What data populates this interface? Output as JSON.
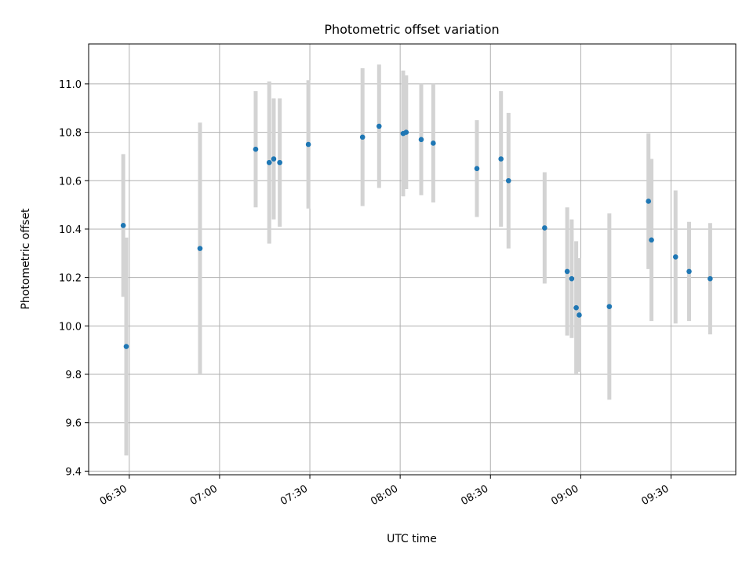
{
  "colors": {
    "point": "#1f77b4",
    "error_bar": "#d3d3d3",
    "grid": "#b0b0b0",
    "axes": "#000000",
    "background": "#ffffff"
  },
  "chart_data": {
    "type": "scatter",
    "title": "Photometric offset variation",
    "xlabel": "UTC time",
    "ylabel": "Photometric offset",
    "grid": true,
    "x_axis_type": "time",
    "xlim": [
      "06:16:30",
      "09:51:30"
    ],
    "ylim": [
      9.385,
      11.165
    ],
    "x_ticks": [
      "06:30",
      "07:00",
      "07:30",
      "08:00",
      "08:30",
      "09:00",
      "09:30"
    ],
    "y_ticks": [
      "9.4",
      "9.6",
      "9.8",
      "10.0",
      "10.2",
      "10.4",
      "10.6",
      "10.8",
      "11.0"
    ],
    "series": [
      {
        "marker": "point",
        "error_bars": "vertical",
        "points": [
          {
            "x": "06:28:00",
            "y": 10.415,
            "err": 0.295
          },
          {
            "x": "06:29:00",
            "y": 9.915,
            "err": 0.45
          },
          {
            "x": "06:53:30",
            "y": 10.32,
            "err": 0.52
          },
          {
            "x": "07:12:00",
            "y": 10.73,
            "err": 0.24
          },
          {
            "x": "07:16:30",
            "y": 10.675,
            "err": 0.335
          },
          {
            "x": "07:18:00",
            "y": 10.69,
            "err": 0.25
          },
          {
            "x": "07:20:00",
            "y": 10.675,
            "err": 0.265
          },
          {
            "x": "07:29:30",
            "y": 10.75,
            "err": 0.265
          },
          {
            "x": "07:47:30",
            "y": 10.78,
            "err": 0.285
          },
          {
            "x": "07:53:00",
            "y": 10.825,
            "err": 0.255
          },
          {
            "x": "08:01:00",
            "y": 10.795,
            "err": 0.26
          },
          {
            "x": "08:02:00",
            "y": 10.8,
            "err": 0.235
          },
          {
            "x": "08:07:00",
            "y": 10.77,
            "err": 0.23
          },
          {
            "x": "08:11:00",
            "y": 10.755,
            "err": 0.245
          },
          {
            "x": "08:25:30",
            "y": 10.65,
            "err": 0.2
          },
          {
            "x": "08:33:30",
            "y": 10.69,
            "err": 0.28
          },
          {
            "x": "08:36:00",
            "y": 10.6,
            "err": 0.28
          },
          {
            "x": "08:48:00",
            "y": 10.405,
            "err": 0.23
          },
          {
            "x": "08:55:30",
            "y": 10.225,
            "err": 0.265
          },
          {
            "x": "08:57:00",
            "y": 10.195,
            "err": 0.245
          },
          {
            "x": "08:58:30",
            "y": 10.075,
            "err": 0.275
          },
          {
            "x": "08:59:30",
            "y": 10.045,
            "err": 0.235
          },
          {
            "x": "09:09:30",
            "y": 10.08,
            "err": 0.385
          },
          {
            "x": "09:22:30",
            "y": 10.515,
            "err": 0.28
          },
          {
            "x": "09:23:30",
            "y": 10.355,
            "err": 0.335
          },
          {
            "x": "09:31:30",
            "y": 10.285,
            "err": 0.275
          },
          {
            "x": "09:36:00",
            "y": 10.225,
            "err": 0.205
          },
          {
            "x": "09:43:00",
            "y": 10.195,
            "err": 0.23
          }
        ]
      }
    ]
  }
}
